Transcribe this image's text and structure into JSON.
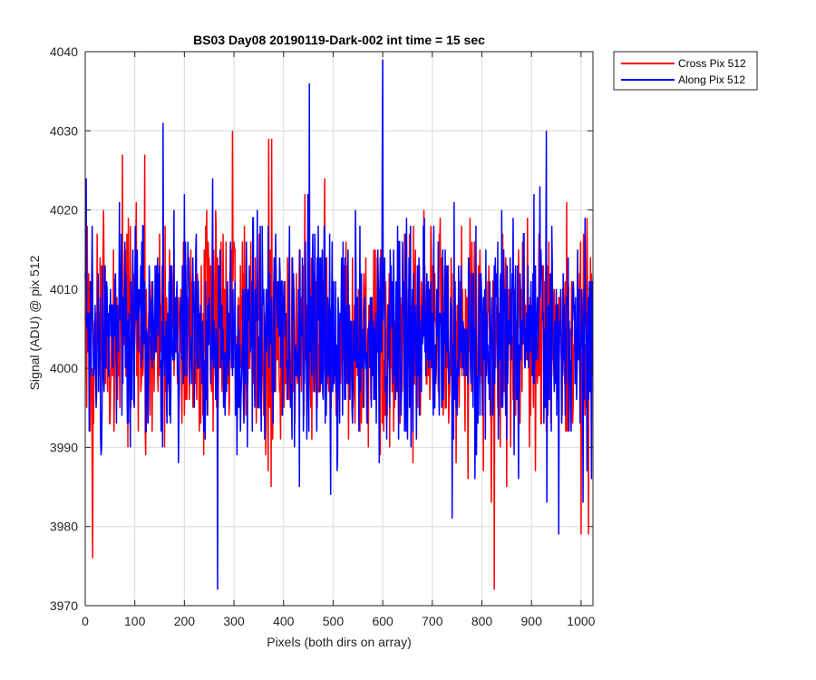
{
  "chart_data": {
    "type": "line",
    "title": "BS03 Day08 20190119-Dark-002 int time = 15 sec",
    "xlabel": "Pixels (both dirs on array)",
    "ylabel": "Signal (ADU) @ pix 512",
    "xlim": [
      0,
      1024
    ],
    "ylim": [
      3970,
      4040
    ],
    "xticks": [
      0,
      100,
      200,
      300,
      400,
      500,
      600,
      700,
      800,
      900,
      1000
    ],
    "yticks": [
      3970,
      3980,
      3990,
      4000,
      4010,
      4020,
      4030,
      4040
    ],
    "grid": true,
    "legend_position": "outside-top-right",
    "series": [
      {
        "name": "Cross Pix 512",
        "color": "#ff0000",
        "mean": 4004,
        "std": 7,
        "samples": 1024,
        "notable_points": [
          {
            "x": 15,
            "y": 3976
          },
          {
            "x": 75,
            "y": 4027
          },
          {
            "x": 120,
            "y": 4027
          },
          {
            "x": 245,
            "y": 4020
          },
          {
            "x": 297,
            "y": 4030
          },
          {
            "x": 370,
            "y": 4029
          },
          {
            "x": 376,
            "y": 4029
          },
          {
            "x": 825,
            "y": 3972
          },
          {
            "x": 1000,
            "y": 3979
          },
          {
            "x": 1015,
            "y": 3979
          }
        ]
      },
      {
        "name": "Along Pix 512",
        "color": "#0000ff",
        "mean": 4004,
        "std": 7,
        "samples": 1024,
        "notable_points": [
          {
            "x": 2,
            "y": 4024
          },
          {
            "x": 157,
            "y": 4031
          },
          {
            "x": 267,
            "y": 3972
          },
          {
            "x": 452,
            "y": 4036
          },
          {
            "x": 600,
            "y": 4039
          },
          {
            "x": 740,
            "y": 3981
          },
          {
            "x": 930,
            "y": 4030
          },
          {
            "x": 955,
            "y": 3979
          }
        ]
      }
    ]
  }
}
